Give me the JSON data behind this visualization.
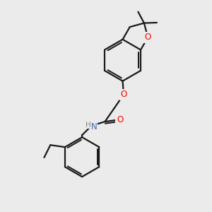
{
  "bg_color": "#ebebeb",
  "bond_color": "#1a1a1a",
  "oxygen_color": "#ff0000",
  "nitrogen_color": "#4169aa",
  "line_width": 1.6,
  "fig_size": [
    3.0,
    3.0
  ],
  "dpi": 100,
  "xlim": [
    0,
    10
  ],
  "ylim": [
    0,
    10
  ]
}
